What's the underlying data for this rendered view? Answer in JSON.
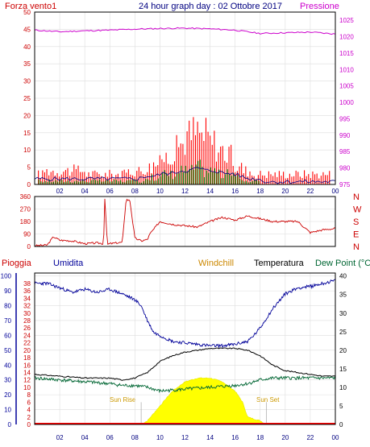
{
  "header": {
    "left_label": "Forza vento1",
    "title": "24 hour graph day : 02 Ottobre 2017",
    "right_label": "Pressione"
  },
  "colors": {
    "background": "#ffffff",
    "axis_red": "#cc0000",
    "wind_gust": "#ff0000",
    "wind_avg": "#008000",
    "wind_blue": "#000080",
    "pressure": "#cc00cc",
    "humidity": "#000099",
    "temperature": "#000000",
    "dew_point": "#006633",
    "rain": "#ff0000",
    "solar": "#ffff00",
    "windchill": "#cc8800",
    "dir_line": "#cc0000"
  },
  "x_ticks": [
    "02",
    "04",
    "06",
    "08",
    "10",
    "12",
    "14",
    "16",
    "18",
    "20",
    "22",
    "00"
  ],
  "chart_data": [
    {
      "type": "bar",
      "panel": "wind",
      "y_left_ticks": [
        "0",
        "5",
        "10",
        "15",
        "20",
        "25",
        "30",
        "35",
        "40",
        "45",
        "50"
      ],
      "y_right_ticks": [
        "975",
        "980",
        "985",
        "990",
        "995",
        "1000",
        "1005",
        "1010",
        "1015",
        "1020",
        "1025"
      ],
      "ylim_left": [
        0,
        50
      ],
      "ylim_right": [
        975,
        1027.5
      ],
      "x_range_hours": [
        0,
        24
      ],
      "series": [
        {
          "name": "Forza vento1",
          "kind": "gust",
          "values": [
            3,
            4,
            4,
            4,
            4,
            4,
            3,
            3,
            3,
            3,
            3,
            4,
            4,
            5,
            6,
            8,
            10,
            12,
            14,
            15,
            14,
            12,
            10,
            8,
            5,
            4,
            3,
            3,
            3,
            3,
            3,
            3,
            3,
            3,
            3,
            3
          ]
        },
        {
          "name": "",
          "kind": "average",
          "values": [
            1,
            1,
            1,
            1,
            1,
            1,
            1,
            1,
            1,
            1,
            1,
            1,
            1,
            2,
            2,
            3,
            3,
            4,
            4,
            5,
            4,
            4,
            3,
            3,
            2,
            1,
            1,
            0,
            0,
            0,
            0,
            0,
            0,
            0,
            0,
            0
          ]
        },
        {
          "name": "Pressione",
          "kind": "line",
          "x": [
            0,
            2,
            4,
            6,
            8,
            10,
            12,
            14,
            16,
            18,
            20,
            22,
            24
          ],
          "values": [
            1022.0,
            1021.5,
            1021.8,
            1022.0,
            1022.3,
            1022.5,
            1022.6,
            1022.4,
            1022.0,
            1021.0,
            1021.2,
            1021.4,
            1020.8
          ]
        }
      ]
    },
    {
      "type": "line",
      "panel": "wind_direction",
      "y_left_ticks": [
        "0",
        "90",
        "180",
        "270",
        "360"
      ],
      "y_right_letters": [
        "N",
        "W",
        "S",
        "E",
        "N"
      ],
      "ylim": [
        0,
        360
      ],
      "x_range_hours": [
        0,
        24
      ],
      "series": [
        {
          "name": "",
          "x": [
            0,
            1,
            1.5,
            2,
            3,
            4,
            5,
            5.5,
            5.6,
            5.8,
            6,
            7,
            7.3,
            7.6,
            8,
            8.5,
            9,
            9.2,
            10,
            11,
            12,
            13,
            14,
            15,
            16,
            17,
            18,
            19,
            20,
            21,
            22,
            23,
            24
          ],
          "values": [
            5,
            10,
            70,
            45,
            40,
            20,
            25,
            20,
            350,
            15,
            20,
            30,
            340,
            330,
            60,
            40,
            50,
            90,
            180,
            160,
            150,
            140,
            180,
            210,
            190,
            220,
            200,
            180,
            180,
            180,
            100,
            120,
            130
          ]
        }
      ]
    },
    {
      "type": "line",
      "panel": "climate",
      "labels": {
        "rain": "Pioggia",
        "humidity": "Umidita",
        "windchill": "Windchill",
        "temperature": "Temperatura",
        "dew_point": "Dew Point (°C"
      },
      "y_hum_ticks": [
        "0",
        "10",
        "20",
        "30",
        "40",
        "50",
        "60",
        "70",
        "80",
        "90",
        "100"
      ],
      "y_rain_ticks": [
        "0",
        "2",
        "4",
        "6",
        "8",
        "10",
        "12",
        "14",
        "16",
        "18",
        "20",
        "22",
        "24",
        "26",
        "28",
        "30",
        "32",
        "34",
        "36",
        "38"
      ],
      "y_right_ticks": [
        "0",
        "5",
        "10",
        "15",
        "20",
        "25",
        "30",
        "35",
        "40"
      ],
      "annotations": [
        "Sun Rise",
        "Sun Set"
      ],
      "x_range_hours": [
        0,
        24
      ],
      "series": [
        {
          "name": "Umidita",
          "x": [
            0,
            1,
            2,
            3,
            4,
            5,
            6,
            7,
            8,
            8.5,
            9,
            9.5,
            10,
            11,
            12,
            13,
            14,
            15,
            16,
            17,
            17.5,
            18,
            19,
            20,
            21,
            22,
            23,
            24
          ],
          "values": [
            95,
            95,
            92,
            89,
            91,
            89,
            91,
            88,
            84,
            80,
            70,
            62,
            60,
            56,
            55,
            54,
            53,
            53,
            54,
            56,
            60,
            65,
            78,
            88,
            92,
            93,
            95,
            97
          ]
        },
        {
          "name": "Temperatura",
          "x": [
            0,
            2,
            4,
            6,
            7,
            8,
            9,
            10,
            11,
            12,
            13,
            14,
            15,
            16,
            17,
            18,
            19,
            20,
            21,
            22,
            23,
            24
          ],
          "values": [
            13.5,
            13,
            12.5,
            12.5,
            12.0,
            12.5,
            14,
            17,
            18.5,
            19.5,
            20,
            20.5,
            20.5,
            20.5,
            20,
            18.5,
            16,
            14.5,
            14,
            13.5,
            13,
            13
          ]
        },
        {
          "name": "Dew Point",
          "x": [
            0,
            2,
            4,
            6,
            7,
            8,
            9,
            10,
            12,
            14,
            16,
            17,
            18,
            19,
            20,
            22,
            24
          ],
          "values": [
            12.5,
            12,
            11.5,
            11,
            10.5,
            10.5,
            10,
            9,
            9.5,
            10,
            10.5,
            11,
            12,
            12.5,
            12.5,
            12.5,
            12.5
          ]
        },
        {
          "name": "Solar",
          "x": [
            8.5,
            9,
            10,
            11,
            12,
            13,
            14,
            15,
            16,
            16.6,
            17,
            18,
            18.5
          ],
          "values": [
            0,
            1,
            5,
            9,
            11.5,
            12.5,
            12.5,
            11.5,
            9,
            6,
            2,
            1,
            0
          ]
        },
        {
          "name": "Pioggia",
          "x": [
            0,
            24
          ],
          "values": [
            0,
            0
          ]
        }
      ]
    }
  ]
}
